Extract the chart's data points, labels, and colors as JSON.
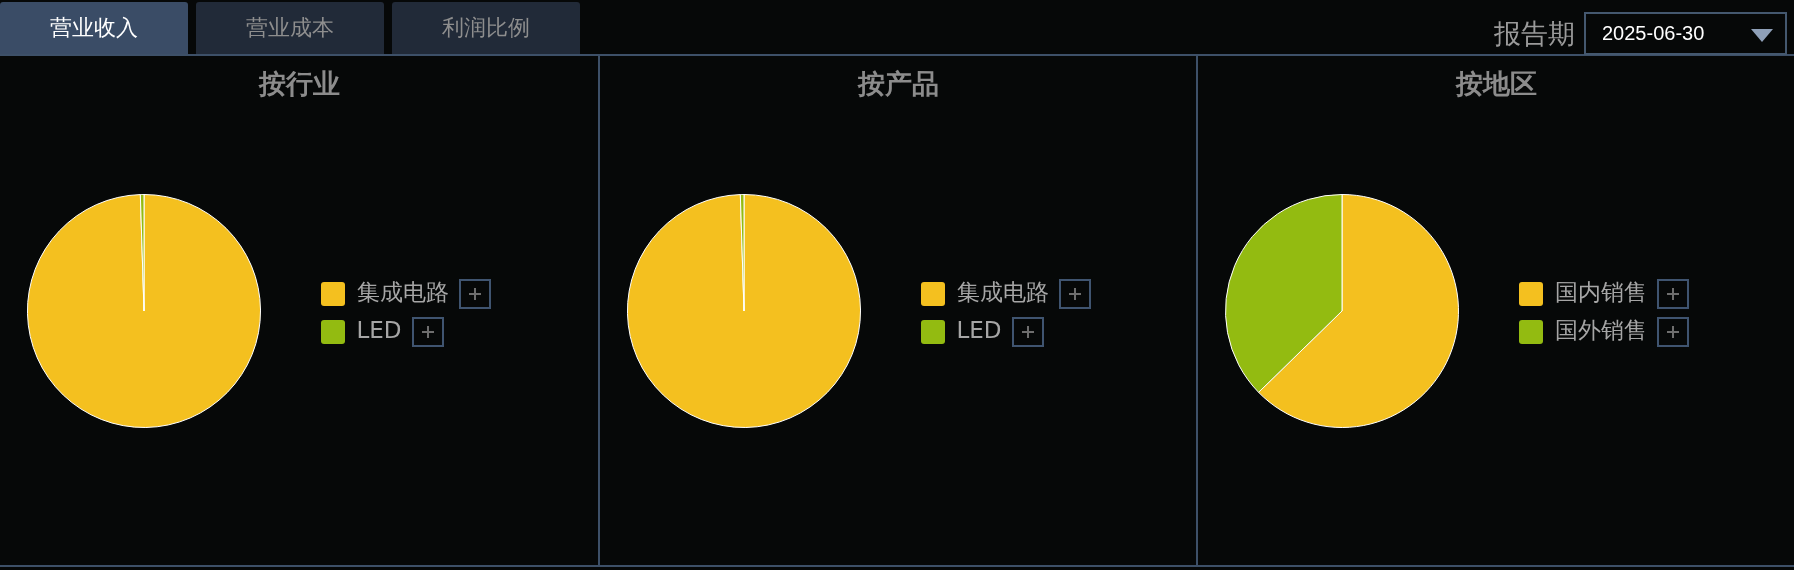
{
  "chart_data": [
    {
      "type": "pie",
      "title": "按行业",
      "categories": [
        "集成电路",
        "LED"
      ],
      "values": [
        99.5,
        0.5
      ],
      "colors": [
        "#f4c01f",
        "#93bb11"
      ],
      "legend": "right",
      "annotations": [
        "营业收入",
        "营业成本",
        "利润比例"
      ]
    },
    {
      "type": "pie",
      "title": "按产品",
      "categories": [
        "集成电路",
        "LED"
      ],
      "values": [
        99.5,
        0.5
      ],
      "colors": [
        "#f4c01f",
        "#93bb11"
      ],
      "legend": "right"
    },
    {
      "type": "pie",
      "title": "按地区",
      "categories": [
        "国内销售",
        "国外销售"
      ],
      "values": [
        62.7,
        37.3
      ],
      "colors": [
        "#f4c01f",
        "#93bb11"
      ],
      "legend": "right",
      "annotations": [
        "报告期",
        "2025-06-30"
      ]
    }
  ]
}
